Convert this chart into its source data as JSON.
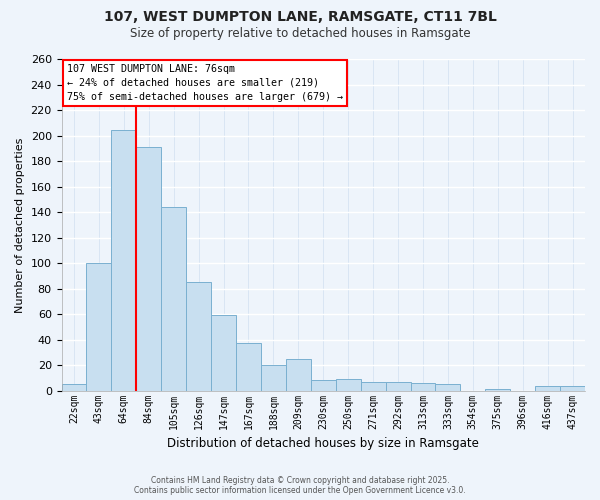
{
  "title_line1": "107, WEST DUMPTON LANE, RAMSGATE, CT11 7BL",
  "title_line2": "Size of property relative to detached houses in Ramsgate",
  "xlabel": "Distribution of detached houses by size in Ramsgate",
  "ylabel": "Number of detached properties",
  "bar_color": "#c8dff0",
  "bar_edge_color": "#7ab0d0",
  "categories": [
    "22sqm",
    "43sqm",
    "64sqm",
    "84sqm",
    "105sqm",
    "126sqm",
    "147sqm",
    "167sqm",
    "188sqm",
    "209sqm",
    "230sqm",
    "250sqm",
    "271sqm",
    "292sqm",
    "313sqm",
    "333sqm",
    "354sqm",
    "375sqm",
    "396sqm",
    "416sqm",
    "437sqm"
  ],
  "values": [
    5,
    100,
    204,
    191,
    144,
    85,
    59,
    37,
    20,
    25,
    8,
    9,
    7,
    7,
    6,
    5,
    0,
    1,
    0,
    4,
    4
  ],
  "ylim": [
    0,
    260
  ],
  "yticks": [
    0,
    20,
    40,
    60,
    80,
    100,
    120,
    140,
    160,
    180,
    200,
    220,
    240,
    260
  ],
  "red_line_x": 2.5,
  "annotation_title": "107 WEST DUMPTON LANE: 76sqm",
  "annotation_line1": "← 24% of detached houses are smaller (219)",
  "annotation_line2": "75% of semi-detached houses are larger (679) →",
  "footer_line1": "Contains HM Land Registry data © Crown copyright and database right 2025.",
  "footer_line2": "Contains public sector information licensed under the Open Government Licence v3.0.",
  "background_color": "#eef4fb",
  "grid_color": "#d0dff0"
}
